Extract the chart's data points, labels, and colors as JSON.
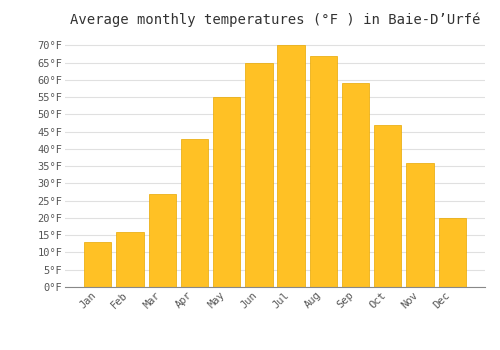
{
  "title": "Average monthly temperatures (°F ) in Baie-D’Urfé",
  "months": [
    "Jan",
    "Feb",
    "Mar",
    "Apr",
    "May",
    "Jun",
    "Jul",
    "Aug",
    "Sep",
    "Oct",
    "Nov",
    "Dec"
  ],
  "values": [
    13,
    16,
    27,
    43,
    55,
    65,
    70,
    67,
    59,
    47,
    36,
    20
  ],
  "bar_color": "#FFC125",
  "bar_edge_color": "#E8A800",
  "ylim": [
    0,
    73
  ],
  "yticks": [
    0,
    5,
    10,
    15,
    20,
    25,
    30,
    35,
    40,
    45,
    50,
    55,
    60,
    65,
    70
  ],
  "ytick_labels": [
    "0°F",
    "5°F",
    "10°F",
    "15°F",
    "20°F",
    "25°F",
    "30°F",
    "35°F",
    "40°F",
    "45°F",
    "50°F",
    "55°F",
    "60°F",
    "65°F",
    "70°F"
  ],
  "background_color": "#ffffff",
  "grid_color": "#e0e0e0",
  "title_fontsize": 10,
  "tick_fontsize": 7.5,
  "bar_width": 0.85
}
